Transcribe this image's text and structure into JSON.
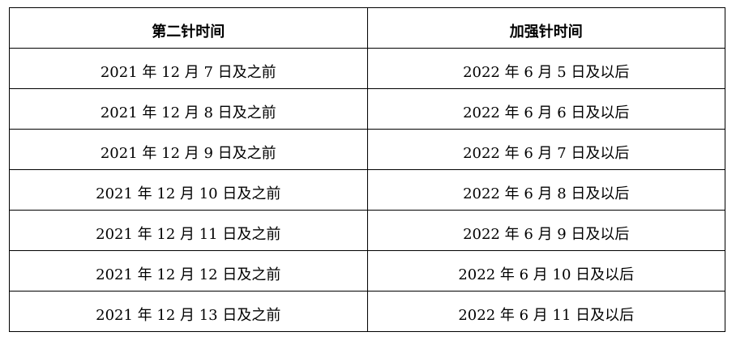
{
  "headers": [
    "第二针时间",
    "加强针时间"
  ],
  "rows": [
    [
      "2021 年 12 月 7 日及之前",
      "2022 年 6 月 5 日及以后"
    ],
    [
      "2021 年 12 月 8 日及之前",
      "2022 年 6 月 6 日及以后"
    ],
    [
      "2021 年 12 月 9 日及之前",
      "2022 年 6 月 7 日及以后"
    ],
    [
      "2021 年 12 月 10 日及之前",
      "2022 年 6 月 8 日及以后"
    ],
    [
      "2021 年 12 月 11 日及之前",
      "2022 年 6 月 9 日及以后"
    ],
    [
      "2021 年 12 月 12 日及之前",
      "2022 年 6 月 10 日及以后"
    ],
    [
      "2021 年 12 月 13 日及之前",
      "2022 年 6 月 11 日及以后"
    ]
  ]
}
